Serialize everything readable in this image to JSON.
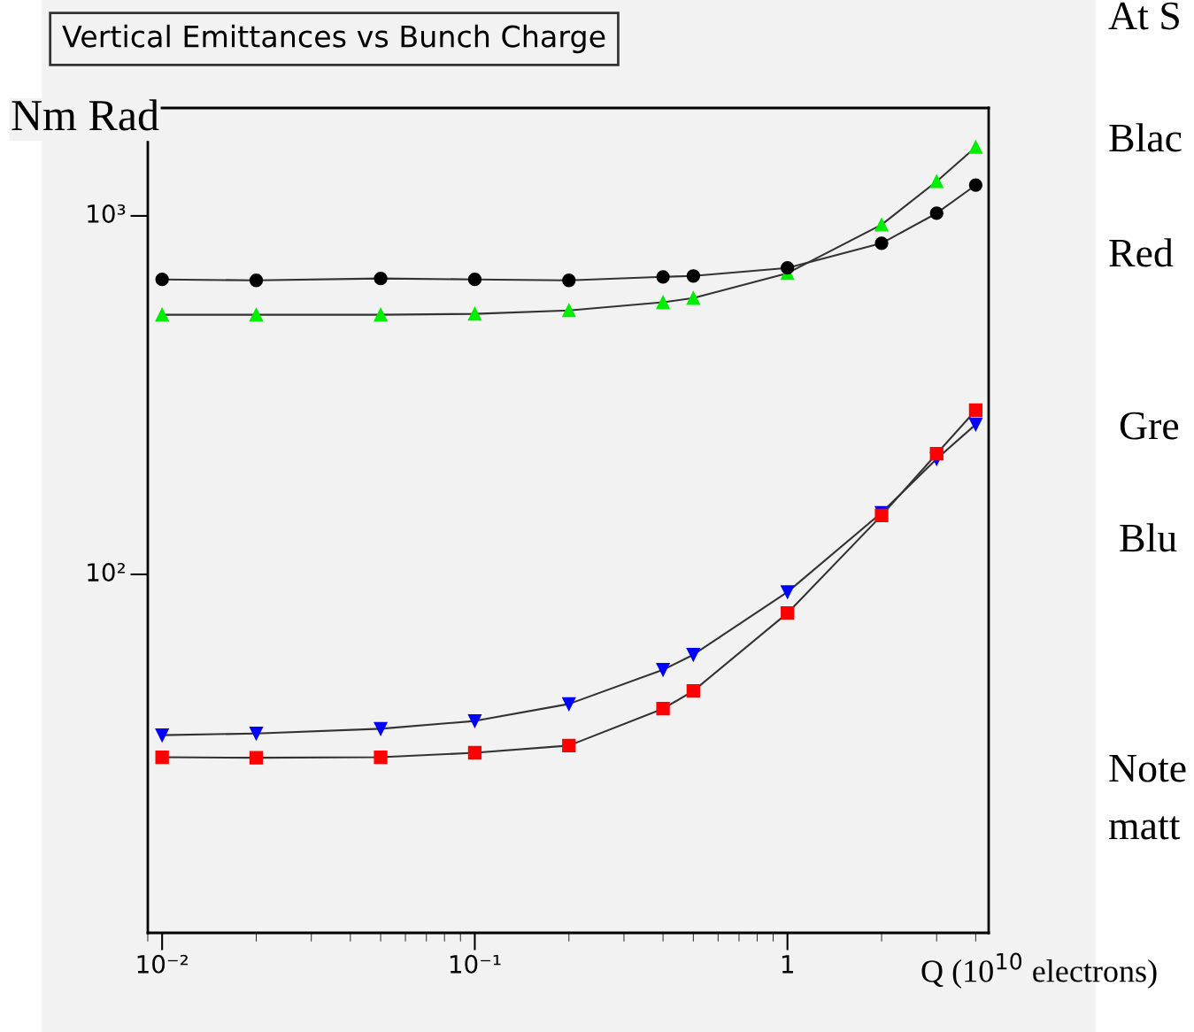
{
  "chart_data": {
    "type": "line",
    "title": "Vertical Emittances vs Bunch Charge",
    "ylabel": "Nm Rad",
    "xlabel": "Q (10$^{10}$ electrons)",
    "log": "xy",
    "grid": false,
    "legend": false,
    "x": [
      0.01,
      0.02,
      0.05,
      0.1,
      0.2,
      0.4,
      0.5,
      1,
      2,
      3,
      4
    ],
    "xlim": [
      0.009,
      4.4
    ],
    "xticks": [
      {
        "value": 0.01,
        "label": "10⁻²"
      },
      {
        "value": 0.1,
        "label": "10⁻¹"
      },
      1
    ],
    "ylim": [
      10,
      2000
    ],
    "yticks": [
      {
        "value": 100,
        "label": "10²"
      },
      {
        "value": 1000,
        "label": "10³"
      }
    ],
    "series": [
      {
        "color": "#000000",
        "marker": "circle",
        "values": [
          665,
          661,
          669,
          665,
          661,
          676,
          680,
          716,
          839,
          1017,
          1219
        ]
      },
      {
        "color": "#00ee00",
        "marker": "triangle",
        "values": [
          530,
          530,
          530,
          533,
          545,
          574,
          590,
          692,
          945,
          1248,
          1556
        ]
      },
      {
        "color": "#ff0000",
        "marker": "square",
        "values": [
          30.9,
          30.8,
          30.9,
          31.8,
          33.3,
          42.2,
          47.3,
          78,
          146,
          217,
          287
        ]
      },
      {
        "color": "#0000ff",
        "marker": "triangle_down",
        "values": [
          35.6,
          36.0,
          37.1,
          39.0,
          43.5,
          54.2,
          59.7,
          89.3,
          148.6,
          210,
          262
        ]
      }
    ],
    "annotations": [
      "At S",
      "Blac",
      "Red",
      "Gre",
      "Blu",
      "Note",
      "matt"
    ]
  }
}
